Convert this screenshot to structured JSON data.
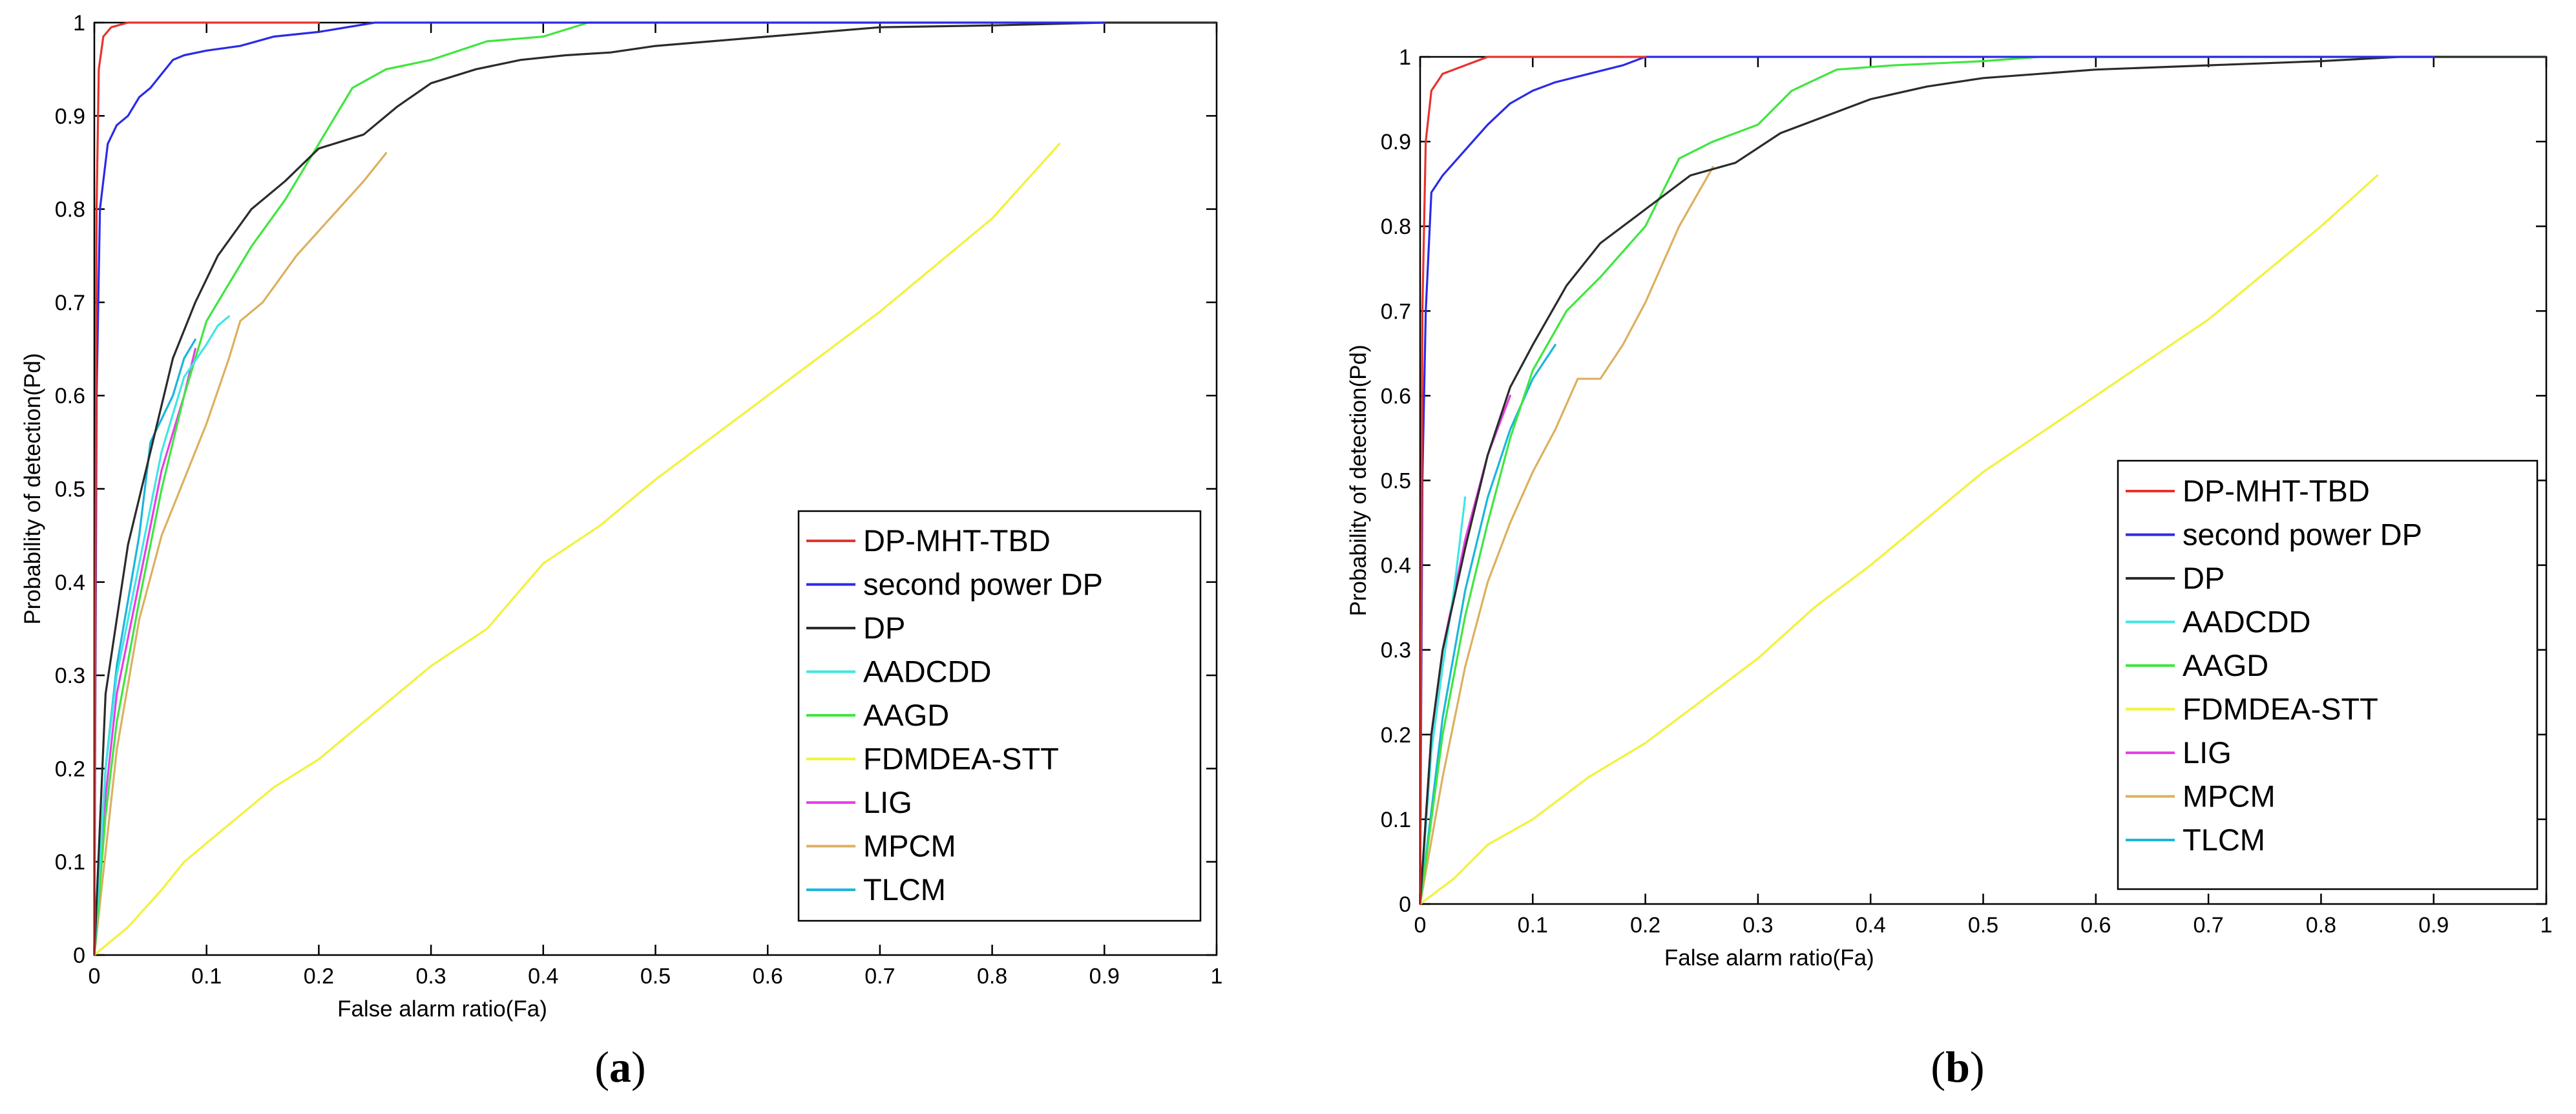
{
  "colors": {
    "DP-MHT-TBD": "#e6332e",
    "second power DP": "#2a2ae8",
    "DP": "#2b2b2b",
    "AADCDD": "#3fe6e6",
    "AAGD": "#3fe63f",
    "FDMDEA-STT": "#f2f23a",
    "LIG": "#e63fe6",
    "MPCM": "#dcb060",
    "TLCM": "#1ab6dc"
  },
  "chart_data": [
    {
      "type": "line",
      "panel_label": "a",
      "xlabel": "False alarm ratio(Fa)",
      "ylabel": "Probability of detection(Pd)",
      "xlim": [
        0,
        1
      ],
      "ylim": [
        0,
        1
      ],
      "xticks": [
        "0",
        "0.1",
        "0.2",
        "0.3",
        "0.4",
        "0.5",
        "0.6",
        "0.7",
        "0.8",
        "0.9",
        "1"
      ],
      "yticks": [
        "0",
        "0.1",
        "0.2",
        "0.3",
        "0.4",
        "0.5",
        "0.6",
        "0.7",
        "0.8",
        "0.9",
        "1"
      ],
      "grid": false,
      "legend_position": "bottom-right",
      "series": [
        {
          "name": "DP-MHT-TBD",
          "points": [
            [
              0,
              0
            ],
            [
              0.002,
              0.8
            ],
            [
              0.004,
              0.95
            ],
            [
              0.008,
              0.985
            ],
            [
              0.015,
              0.995
            ],
            [
              0.03,
              1
            ],
            [
              0.2,
              1
            ]
          ]
        },
        {
          "name": "second power DP",
          "points": [
            [
              0,
              0
            ],
            [
              0.002,
              0.6
            ],
            [
              0.005,
              0.8
            ],
            [
              0.012,
              0.87
            ],
            [
              0.02,
              0.89
            ],
            [
              0.03,
              0.9
            ],
            [
              0.04,
              0.92
            ],
            [
              0.05,
              0.93
            ],
            [
              0.06,
              0.945
            ],
            [
              0.07,
              0.96
            ],
            [
              0.08,
              0.965
            ],
            [
              0.1,
              0.97
            ],
            [
              0.13,
              0.975
            ],
            [
              0.16,
              0.985
            ],
            [
              0.2,
              0.99
            ],
            [
              0.25,
              1
            ],
            [
              0.9,
              1
            ]
          ]
        },
        {
          "name": "DP",
          "points": [
            [
              0,
              0
            ],
            [
              0.01,
              0.28
            ],
            [
              0.02,
              0.36
            ],
            [
              0.03,
              0.44
            ],
            [
              0.05,
              0.54
            ],
            [
              0.07,
              0.64
            ],
            [
              0.09,
              0.7
            ],
            [
              0.11,
              0.75
            ],
            [
              0.14,
              0.8
            ],
            [
              0.17,
              0.83
            ],
            [
              0.2,
              0.865
            ],
            [
              0.24,
              0.88
            ],
            [
              0.27,
              0.91
            ],
            [
              0.3,
              0.935
            ],
            [
              0.34,
              0.95
            ],
            [
              0.38,
              0.96
            ],
            [
              0.42,
              0.965
            ],
            [
              0.46,
              0.968
            ],
            [
              0.5,
              0.975
            ],
            [
              0.55,
              0.98
            ],
            [
              0.6,
              0.985
            ],
            [
              0.65,
              0.99
            ],
            [
              0.7,
              0.995
            ],
            [
              0.8,
              0.997
            ],
            [
              0.9,
              1
            ],
            [
              1,
              1
            ]
          ]
        },
        {
          "name": "AADCDD",
          "points": [
            [
              0,
              0
            ],
            [
              0.01,
              0.2
            ],
            [
              0.02,
              0.3
            ],
            [
              0.04,
              0.42
            ],
            [
              0.06,
              0.54
            ],
            [
              0.08,
              0.62
            ],
            [
              0.1,
              0.655
            ],
            [
              0.11,
              0.675
            ],
            [
              0.12,
              0.685
            ]
          ]
        },
        {
          "name": "AAGD",
          "points": [
            [
              0,
              0
            ],
            [
              0.01,
              0.15
            ],
            [
              0.02,
              0.25
            ],
            [
              0.04,
              0.38
            ],
            [
              0.06,
              0.5
            ],
            [
              0.08,
              0.6
            ],
            [
              0.1,
              0.68
            ],
            [
              0.12,
              0.72
            ],
            [
              0.14,
              0.76
            ],
            [
              0.17,
              0.81
            ],
            [
              0.2,
              0.87
            ],
            [
              0.23,
              0.93
            ],
            [
              0.26,
              0.95
            ],
            [
              0.3,
              0.96
            ],
            [
              0.35,
              0.98
            ],
            [
              0.4,
              0.985
            ],
            [
              0.44,
              1
            ],
            [
              1,
              1
            ]
          ]
        },
        {
          "name": "FDMDEA-STT",
          "points": [
            [
              0,
              0
            ],
            [
              0.03,
              0.03
            ],
            [
              0.06,
              0.07
            ],
            [
              0.08,
              0.1
            ],
            [
              0.12,
              0.14
            ],
            [
              0.16,
              0.18
            ],
            [
              0.2,
              0.21
            ],
            [
              0.25,
              0.26
            ],
            [
              0.3,
              0.31
            ],
            [
              0.35,
              0.35
            ],
            [
              0.4,
              0.42
            ],
            [
              0.45,
              0.46
            ],
            [
              0.5,
              0.51
            ],
            [
              0.6,
              0.6
            ],
            [
              0.7,
              0.69
            ],
            [
              0.8,
              0.79
            ],
            [
              0.86,
              0.87
            ]
          ]
        },
        {
          "name": "LIG",
          "points": [
            [
              0,
              0
            ],
            [
              0.01,
              0.17
            ],
            [
              0.02,
              0.28
            ],
            [
              0.04,
              0.4
            ],
            [
              0.06,
              0.52
            ],
            [
              0.08,
              0.6
            ],
            [
              0.09,
              0.65
            ]
          ]
        },
        {
          "name": "MPCM",
          "points": [
            [
              0,
              0
            ],
            [
              0.02,
              0.22
            ],
            [
              0.04,
              0.36
            ],
            [
              0.06,
              0.45
            ],
            [
              0.07,
              0.48
            ],
            [
              0.09,
              0.54
            ],
            [
              0.1,
              0.57
            ],
            [
              0.12,
              0.64
            ],
            [
              0.13,
              0.68
            ],
            [
              0.15,
              0.7
            ],
            [
              0.18,
              0.75
            ],
            [
              0.21,
              0.79
            ],
            [
              0.24,
              0.83
            ],
            [
              0.26,
              0.86
            ]
          ]
        },
        {
          "name": "TLCM",
          "points": [
            [
              0,
              0
            ],
            [
              0.01,
              0.2
            ],
            [
              0.02,
              0.31
            ],
            [
              0.04,
              0.45
            ],
            [
              0.05,
              0.55
            ],
            [
              0.07,
              0.6
            ],
            [
              0.08,
              0.64
            ],
            [
              0.09,
              0.66
            ]
          ]
        }
      ]
    },
    {
      "type": "line",
      "panel_label": "b",
      "xlabel": "False alarm ratio(Fa)",
      "ylabel": "Probability of detection(Pd)",
      "xlim": [
        0,
        1
      ],
      "ylim": [
        0,
        1
      ],
      "xticks": [
        "0",
        "0.1",
        "0.2",
        "0.3",
        "0.4",
        "0.5",
        "0.6",
        "0.7",
        "0.8",
        "0.9",
        "1"
      ],
      "yticks": [
        "0",
        "0.1",
        "0.2",
        "0.3",
        "0.4",
        "0.5",
        "0.6",
        "0.7",
        "0.8",
        "0.9",
        "1"
      ],
      "grid": false,
      "legend_position": "bottom-right",
      "series": [
        {
          "name": "DP-MHT-TBD",
          "points": [
            [
              0,
              0
            ],
            [
              0.002,
              0.7
            ],
            [
              0.005,
              0.9
            ],
            [
              0.01,
              0.96
            ],
            [
              0.02,
              0.98
            ],
            [
              0.04,
              0.99
            ],
            [
              0.06,
              1
            ],
            [
              0.2,
              1
            ]
          ]
        },
        {
          "name": "second power DP",
          "points": [
            [
              0,
              0
            ],
            [
              0.002,
              0.5
            ],
            [
              0.005,
              0.7
            ],
            [
              0.01,
              0.84
            ],
            [
              0.02,
              0.86
            ],
            [
              0.04,
              0.89
            ],
            [
              0.06,
              0.92
            ],
            [
              0.08,
              0.945
            ],
            [
              0.1,
              0.96
            ],
            [
              0.12,
              0.97
            ],
            [
              0.15,
              0.98
            ],
            [
              0.18,
              0.99
            ],
            [
              0.2,
              1
            ],
            [
              0.9,
              1
            ]
          ]
        },
        {
          "name": "DP",
          "points": [
            [
              0,
              0
            ],
            [
              0.01,
              0.2
            ],
            [
              0.02,
              0.3
            ],
            [
              0.04,
              0.42
            ],
            [
              0.06,
              0.53
            ],
            [
              0.08,
              0.61
            ],
            [
              0.1,
              0.66
            ],
            [
              0.13,
              0.73
            ],
            [
              0.16,
              0.78
            ],
            [
              0.2,
              0.82
            ],
            [
              0.24,
              0.86
            ],
            [
              0.28,
              0.875
            ],
            [
              0.32,
              0.91
            ],
            [
              0.36,
              0.93
            ],
            [
              0.4,
              0.95
            ],
            [
              0.45,
              0.965
            ],
            [
              0.5,
              0.975
            ],
            [
              0.6,
              0.985
            ],
            [
              0.7,
              0.99
            ],
            [
              0.8,
              0.995
            ],
            [
              0.87,
              1
            ],
            [
              1,
              1
            ]
          ]
        },
        {
          "name": "AADCDD",
          "points": [
            [
              0,
              0
            ],
            [
              0.01,
              0.18
            ],
            [
              0.02,
              0.28
            ],
            [
              0.03,
              0.37
            ],
            [
              0.04,
              0.48
            ]
          ]
        },
        {
          "name": "AAGD",
          "points": [
            [
              0,
              0
            ],
            [
              0.02,
              0.2
            ],
            [
              0.04,
              0.34
            ],
            [
              0.06,
              0.45
            ],
            [
              0.08,
              0.55
            ],
            [
              0.1,
              0.63
            ],
            [
              0.13,
              0.7
            ],
            [
              0.16,
              0.74
            ],
            [
              0.2,
              0.8
            ],
            [
              0.23,
              0.88
            ],
            [
              0.26,
              0.9
            ],
            [
              0.3,
              0.92
            ],
            [
              0.33,
              0.96
            ],
            [
              0.37,
              0.985
            ],
            [
              0.42,
              0.99
            ],
            [
              0.5,
              0.995
            ],
            [
              0.55,
              1
            ],
            [
              1,
              1
            ]
          ]
        },
        {
          "name": "FDMDEA-STT",
          "points": [
            [
              0,
              0
            ],
            [
              0.03,
              0.03
            ],
            [
              0.06,
              0.07
            ],
            [
              0.1,
              0.1
            ],
            [
              0.15,
              0.15
            ],
            [
              0.2,
              0.19
            ],
            [
              0.25,
              0.24
            ],
            [
              0.3,
              0.29
            ],
            [
              0.35,
              0.35
            ],
            [
              0.4,
              0.4
            ],
            [
              0.5,
              0.51
            ],
            [
              0.6,
              0.6
            ],
            [
              0.7,
              0.69
            ],
            [
              0.8,
              0.8
            ],
            [
              0.85,
              0.86
            ]
          ]
        },
        {
          "name": "LIG",
          "points": [
            [
              0,
              0
            ],
            [
              0.01,
              0.2
            ],
            [
              0.02,
              0.3
            ],
            [
              0.04,
              0.43
            ],
            [
              0.06,
              0.53
            ],
            [
              0.08,
              0.6
            ]
          ]
        },
        {
          "name": "MPCM",
          "points": [
            [
              0,
              0
            ],
            [
              0.02,
              0.15
            ],
            [
              0.04,
              0.28
            ],
            [
              0.06,
              0.38
            ],
            [
              0.08,
              0.45
            ],
            [
              0.1,
              0.51
            ],
            [
              0.12,
              0.56
            ],
            [
              0.14,
              0.62
            ],
            [
              0.16,
              0.62
            ],
            [
              0.18,
              0.66
            ],
            [
              0.2,
              0.71
            ],
            [
              0.23,
              0.8
            ],
            [
              0.26,
              0.87
            ]
          ]
        },
        {
          "name": "TLCM",
          "points": [
            [
              0,
              0
            ],
            [
              0.02,
              0.22
            ],
            [
              0.04,
              0.37
            ],
            [
              0.06,
              0.48
            ],
            [
              0.08,
              0.56
            ],
            [
              0.1,
              0.62
            ],
            [
              0.12,
              0.66
            ]
          ]
        }
      ]
    }
  ]
}
